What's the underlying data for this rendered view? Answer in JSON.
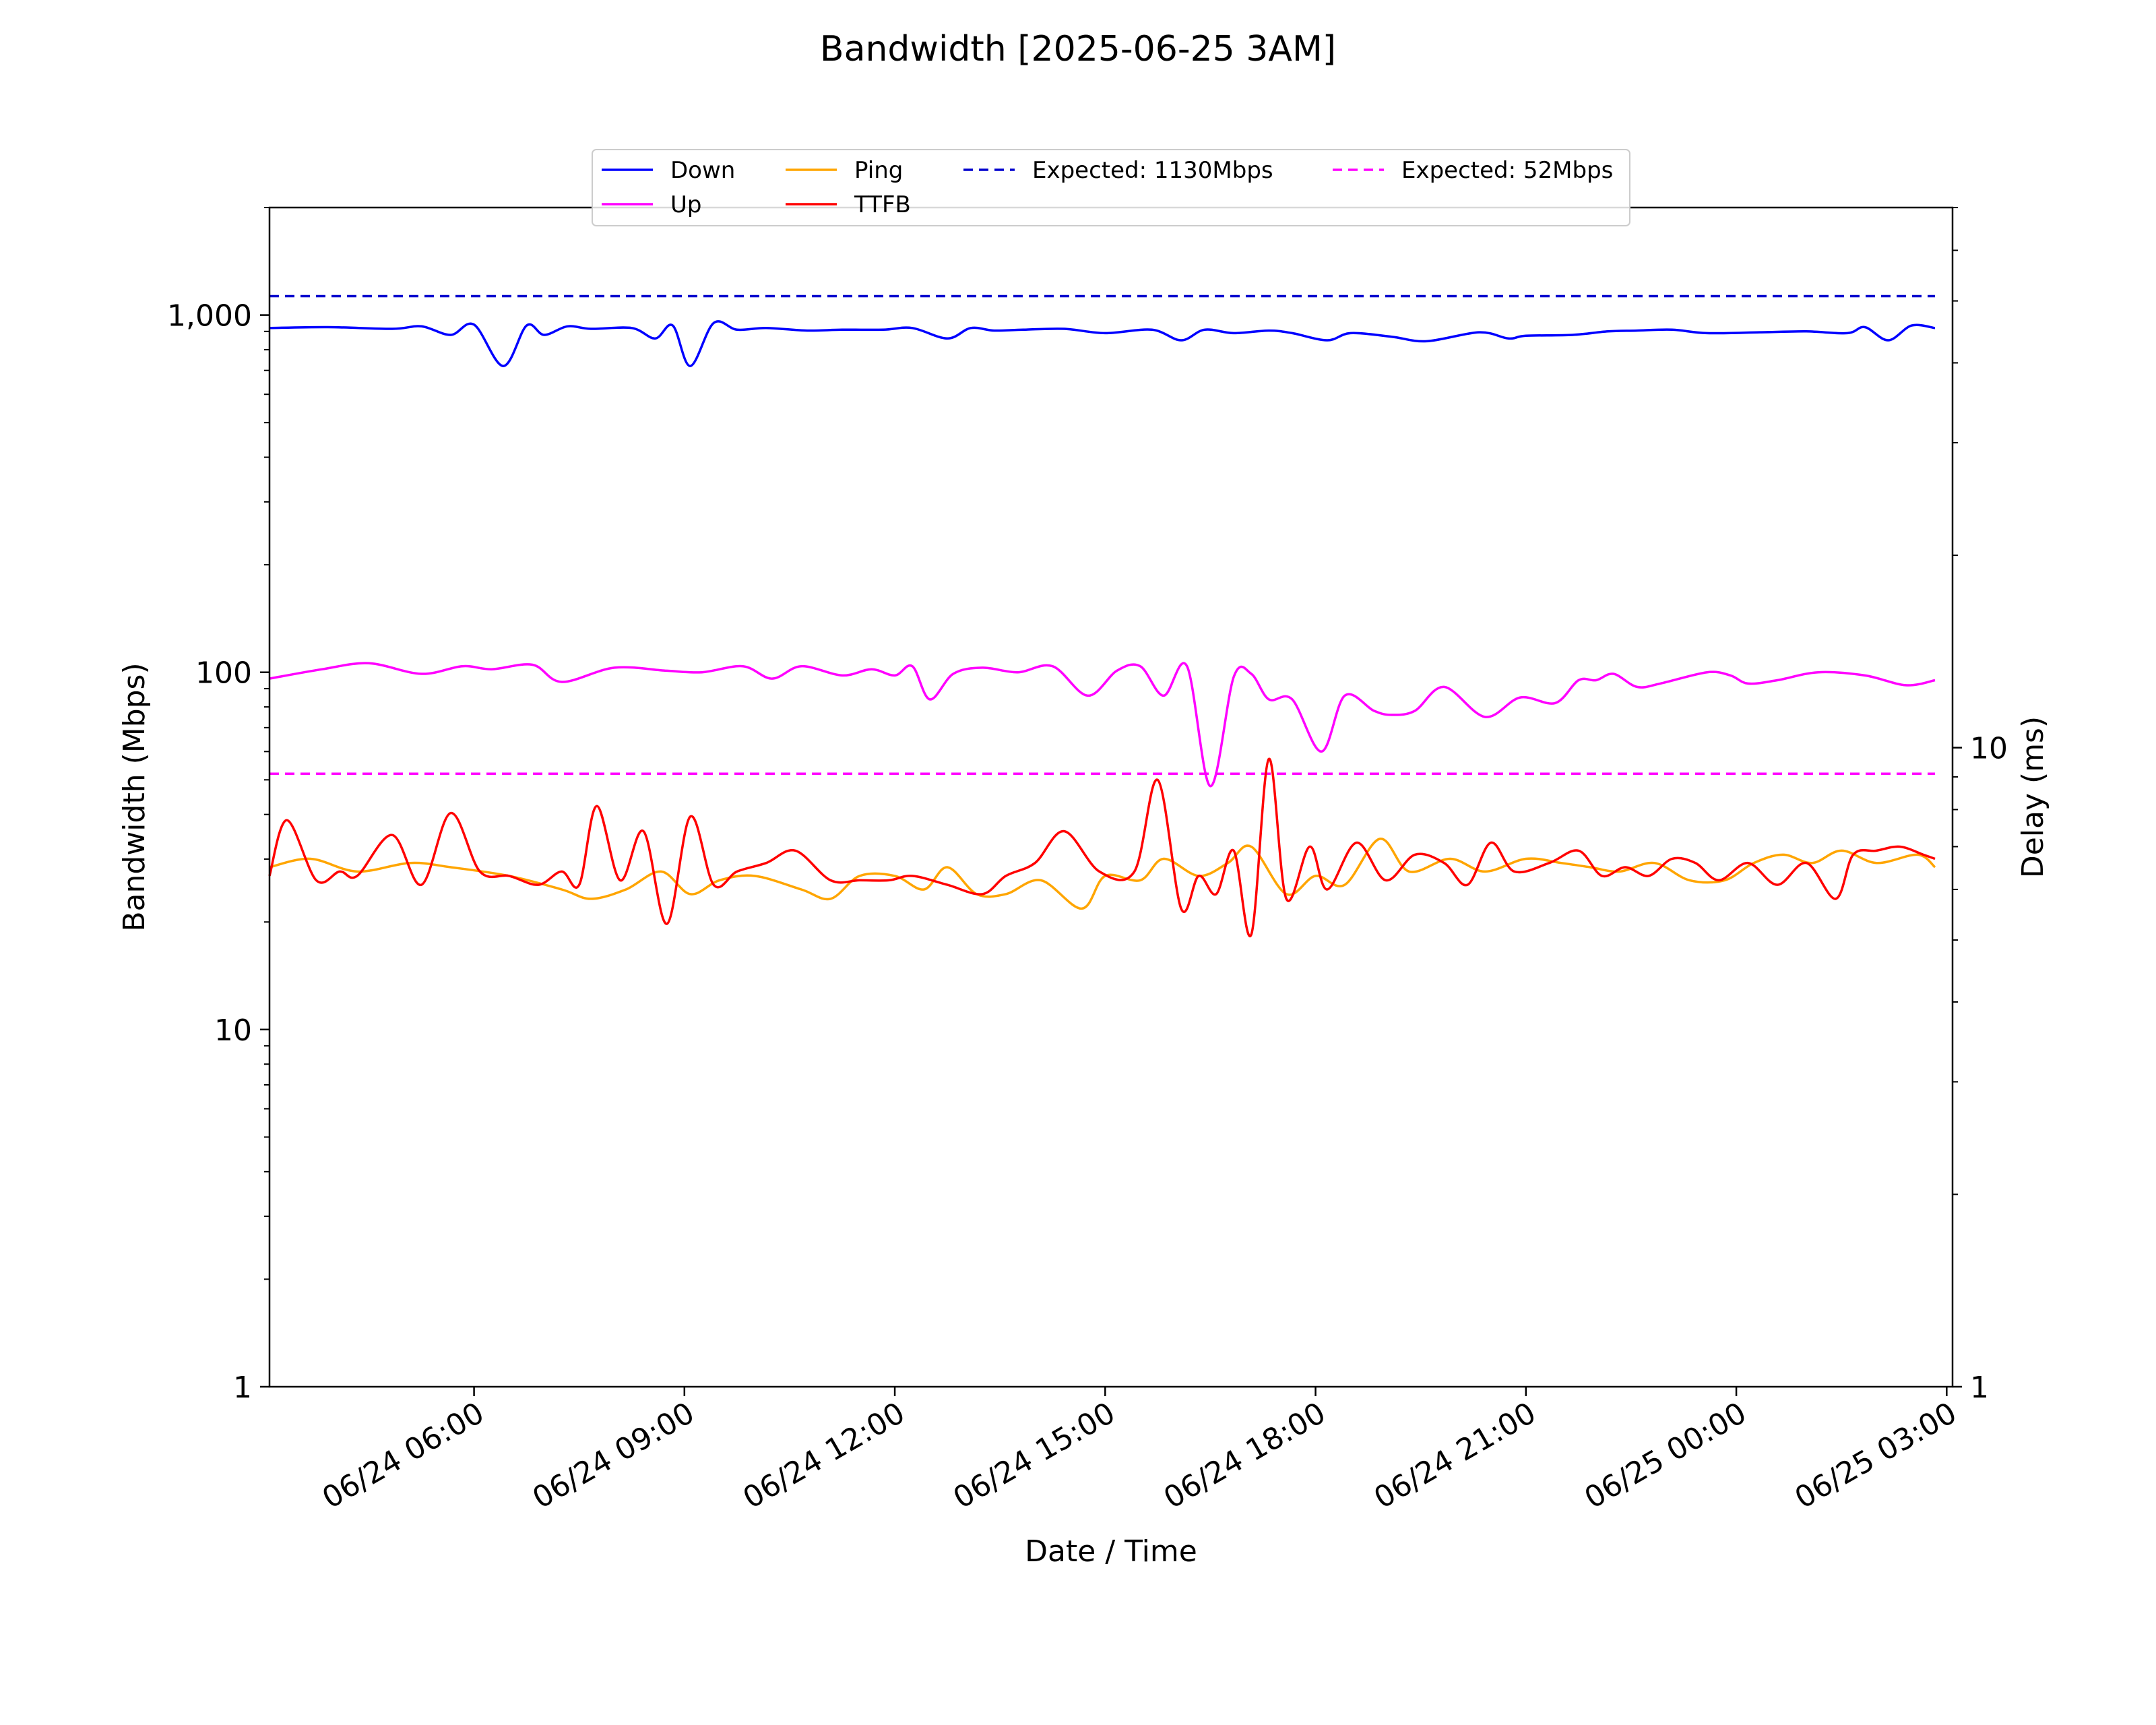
{
  "chart_data": {
    "type": "line",
    "title": "Bandwidth [2025-06-25 3AM]",
    "xlabel": "Date / Time",
    "ylabel": "Bandwidth (Mbps)",
    "y2label": "Delay (ms)",
    "yscale": "log",
    "y2scale": "log",
    "ylim": [
      1,
      2000
    ],
    "y2lim": [
      1,
      70
    ],
    "xlim": [
      "2025-06-24 03:05",
      "2025-06-25 03:05"
    ],
    "grid": false,
    "legend_position": "top-center",
    "yticks": [
      {
        "value": 1,
        "label": "1"
      },
      {
        "value": 10,
        "label": "10"
      },
      {
        "value": 100,
        "label": "100"
      },
      {
        "value": 1000,
        "label": "1,000"
      }
    ],
    "y2ticks": [
      {
        "value": 1,
        "label": "1"
      },
      {
        "value": 10,
        "label": "10"
      }
    ],
    "xticks": [
      {
        "value": "2025-06-24 06:00",
        "label": "06/24 06:00"
      },
      {
        "value": "2025-06-24 09:00",
        "label": "06/24 09:00"
      },
      {
        "value": "2025-06-24 12:00",
        "label": "06/24 12:00"
      },
      {
        "value": "2025-06-24 15:00",
        "label": "06/24 15:00"
      },
      {
        "value": "2025-06-24 18:00",
        "label": "06/24 18:00"
      },
      {
        "value": "2025-06-24 21:00",
        "label": "06/24 21:00"
      },
      {
        "value": "2025-06-25 00:00",
        "label": "06/25 00:00"
      },
      {
        "value": "2025-06-25 03:00",
        "label": "06/25 03:00"
      }
    ],
    "series": [
      {
        "name": "Down",
        "axis": "left",
        "color": "#0000ff",
        "style": "solid",
        "x": [
          "2025-06-24 03:05",
          "2025-06-24 03:55",
          "2025-06-24 04:50",
          "2025-06-24 05:15",
          "2025-06-24 05:40",
          "2025-06-24 06:00",
          "2025-06-24 06:25",
          "2025-06-24 06:45",
          "2025-06-24 07:00",
          "2025-06-24 07:20",
          "2025-06-24 07:40",
          "2025-06-24 08:15",
          "2025-06-24 08:35",
          "2025-06-24 08:50",
          "2025-06-24 09:05",
          "2025-06-24 09:25",
          "2025-06-24 09:45",
          "2025-06-24 10:10",
          "2025-06-24 10:45",
          "2025-06-24 11:15",
          "2025-06-24 11:50",
          "2025-06-24 12:15",
          "2025-06-24 12:45",
          "2025-06-24 13:05",
          "2025-06-24 13:25",
          "2025-06-24 13:50",
          "2025-06-24 14:25",
          "2025-06-24 15:00",
          "2025-06-24 15:40",
          "2025-06-24 16:05",
          "2025-06-24 16:25",
          "2025-06-24 16:50",
          "2025-06-24 17:20",
          "2025-06-24 17:40",
          "2025-06-24 18:10",
          "2025-06-24 18:30",
          "2025-06-24 19:05",
          "2025-06-24 19:35",
          "2025-06-24 20:20",
          "2025-06-24 20:45",
          "2025-06-24 21:00",
          "2025-06-24 21:40",
          "2025-06-24 22:10",
          "2025-06-24 22:35",
          "2025-06-24 23:05",
          "2025-06-24 23:35",
          "2025-06-25 00:20",
          "2025-06-25 01:00",
          "2025-06-25 01:35",
          "2025-06-25 01:50",
          "2025-06-25 02:10",
          "2025-06-25 02:30",
          "2025-06-25 02:50"
        ],
        "values": [
          920,
          925,
          915,
          930,
          880,
          940,
          720,
          935,
          880,
          930,
          915,
          920,
          860,
          935,
          720,
          950,
          910,
          920,
          905,
          910,
          910,
          920,
          860,
          920,
          905,
          910,
          915,
          890,
          910,
          850,
          910,
          890,
          905,
          890,
          850,
          890,
          870,
          845,
          895,
          860,
          875,
          880,
          900,
          905,
          910,
          890,
          895,
          900,
          890,
          925,
          850,
          935,
          920
        ]
      },
      {
        "name": "Up",
        "axis": "left",
        "color": "#ff00ff",
        "style": "solid",
        "x": [
          "2025-06-24 03:05",
          "2025-06-24 03:50",
          "2025-06-24 04:30",
          "2025-06-24 05:15",
          "2025-06-24 05:50",
          "2025-06-24 06:15",
          "2025-06-24 06:50",
          "2025-06-24 07:15",
          "2025-06-24 08:00",
          "2025-06-24 08:45",
          "2025-06-24 09:15",
          "2025-06-24 09:50",
          "2025-06-24 10:15",
          "2025-06-24 10:40",
          "2025-06-24 11:15",
          "2025-06-24 11:40",
          "2025-06-24 12:00",
          "2025-06-24 12:15",
          "2025-06-24 12:30",
          "2025-06-24 12:50",
          "2025-06-24 13:15",
          "2025-06-24 13:45",
          "2025-06-24 14:15",
          "2025-06-24 14:45",
          "2025-06-24 15:10",
          "2025-06-24 15:30",
          "2025-06-24 15:50",
          "2025-06-24 16:10",
          "2025-06-24 16:30",
          "2025-06-24 16:50",
          "2025-06-24 17:05",
          "2025-06-24 17:20",
          "2025-06-24 17:40",
          "2025-06-24 18:05",
          "2025-06-24 18:25",
          "2025-06-24 18:50",
          "2025-06-24 19:05",
          "2025-06-24 19:25",
          "2025-06-24 19:50",
          "2025-06-24 20:25",
          "2025-06-24 20:55",
          "2025-06-24 21:25",
          "2025-06-24 21:45",
          "2025-06-24 22:00",
          "2025-06-24 22:15",
          "2025-06-24 22:35",
          "2025-06-24 22:55",
          "2025-06-24 23:35",
          "2025-06-24 23:55",
          "2025-06-25 00:10",
          "2025-06-25 00:35",
          "2025-06-25 01:10",
          "2025-06-25 01:50",
          "2025-06-25 02:25",
          "2025-06-25 02:50"
        ],
        "values": [
          96,
          102,
          106,
          99,
          104,
          102,
          105,
          94,
          103,
          101,
          100,
          104,
          96,
          104,
          98,
          102,
          98,
          104,
          84,
          99,
          103,
          100,
          104,
          86,
          101,
          104,
          86,
          104,
          48,
          97,
          99,
          84,
          84,
          60,
          86,
          78,
          76,
          78,
          91,
          75,
          85,
          82,
          95,
          95,
          99,
          91,
          93,
          100,
          98,
          93,
          95,
          100,
          98,
          92,
          95
        ]
      },
      {
        "name": "Ping",
        "axis": "right",
        "color": "#ffa500",
        "style": "solid",
        "x": [
          "2025-06-24 03:05",
          "2025-06-24 03:40",
          "2025-06-24 04:20",
          "2025-06-24 05:05",
          "2025-06-24 05:40",
          "2025-06-24 06:30",
          "2025-06-24 07:15",
          "2025-06-24 07:40",
          "2025-06-24 08:10",
          "2025-06-24 08:40",
          "2025-06-24 09:05",
          "2025-06-24 09:30",
          "2025-06-24 10:00",
          "2025-06-24 10:40",
          "2025-06-24 11:05",
          "2025-06-24 11:30",
          "2025-06-24 12:00",
          "2025-06-24 12:25",
          "2025-06-24 12:45",
          "2025-06-24 13:10",
          "2025-06-24 13:35",
          "2025-06-24 14:05",
          "2025-06-24 14:40",
          "2025-06-24 15:00",
          "2025-06-24 15:30",
          "2025-06-24 15:50",
          "2025-06-24 16:20",
          "2025-06-24 16:45",
          "2025-06-24 17:05",
          "2025-06-24 17:35",
          "2025-06-24 18:00",
          "2025-06-24 18:25",
          "2025-06-24 18:55",
          "2025-06-24 19:20",
          "2025-06-24 19:55",
          "2025-06-24 20:25",
          "2025-06-24 21:00",
          "2025-06-24 21:30",
          "2025-06-24 21:55",
          "2025-06-24 22:20",
          "2025-06-24 22:50",
          "2025-06-24 23:20",
          "2025-06-24 23:50",
          "2025-06-25 00:15",
          "2025-06-25 00:40",
          "2025-06-25 01:05",
          "2025-06-25 01:30",
          "2025-06-25 02:00",
          "2025-06-25 02:35",
          "2025-06-25 02:50"
        ],
        "values": [
          6.5,
          6.7,
          6.4,
          6.6,
          6.5,
          6.3,
          6.0,
          5.8,
          6.0,
          6.4,
          5.9,
          6.2,
          6.3,
          6.0,
          5.8,
          6.3,
          6.3,
          6.0,
          6.5,
          5.9,
          5.9,
          6.2,
          5.6,
          6.3,
          6.2,
          6.7,
          6.3,
          6.6,
          7.0,
          5.9,
          6.3,
          6.1,
          7.2,
          6.4,
          6.7,
          6.4,
          6.7,
          6.6,
          6.5,
          6.4,
          6.6,
          6.2,
          6.2,
          6.6,
          6.8,
          6.6,
          6.9,
          6.6,
          6.8,
          6.5
        ]
      },
      {
        "name": "TTFB",
        "axis": "right",
        "color": "#ff0000",
        "style": "solid",
        "x": [
          "2025-06-24 03:05",
          "2025-06-24 03:20",
          "2025-06-24 03:45",
          "2025-06-24 04:05",
          "2025-06-24 04:20",
          "2025-06-24 04:50",
          "2025-06-24 05:15",
          "2025-06-24 05:40",
          "2025-06-24 06:05",
          "2025-06-24 06:30",
          "2025-06-24 06:55",
          "2025-06-24 07:15",
          "2025-06-24 07:30",
          "2025-06-24 07:45",
          "2025-06-24 08:05",
          "2025-06-24 08:25",
          "2025-06-24 08:45",
          "2025-06-24 09:05",
          "2025-06-24 09:25",
          "2025-06-24 09:45",
          "2025-06-24 10:10",
          "2025-06-24 10:35",
          "2025-06-24 11:05",
          "2025-06-24 11:30",
          "2025-06-24 11:55",
          "2025-06-24 12:15",
          "2025-06-24 12:45",
          "2025-06-24 13:15",
          "2025-06-24 13:35",
          "2025-06-24 14:00",
          "2025-06-24 14:25",
          "2025-06-24 14:55",
          "2025-06-24 15:25",
          "2025-06-24 15:45",
          "2025-06-24 16:05",
          "2025-06-24 16:20",
          "2025-06-24 16:35",
          "2025-06-24 16:50",
          "2025-06-24 17:05",
          "2025-06-24 17:20",
          "2025-06-24 17:35",
          "2025-06-24 17:55",
          "2025-06-24 18:10",
          "2025-06-24 18:35",
          "2025-06-24 19:00",
          "2025-06-24 19:25",
          "2025-06-24 19:50",
          "2025-06-24 20:10",
          "2025-06-24 20:30",
          "2025-06-24 20:50",
          "2025-06-24 21:20",
          "2025-06-24 21:45",
          "2025-06-24 22:05",
          "2025-06-24 22:25",
          "2025-06-24 22:45",
          "2025-06-24 23:05",
          "2025-06-24 23:25",
          "2025-06-24 23:45",
          "2025-06-25 00:10",
          "2025-06-25 00:35",
          "2025-06-25 01:00",
          "2025-06-25 01:25",
          "2025-06-25 01:40",
          "2025-06-25 02:00",
          "2025-06-25 02:20",
          "2025-06-25 02:40",
          "2025-06-25 02:50"
        ],
        "values": [
          6.3,
          7.7,
          6.2,
          6.4,
          6.3,
          7.3,
          6.1,
          7.9,
          6.4,
          6.3,
          6.1,
          6.4,
          6.1,
          8.1,
          6.2,
          7.4,
          5.3,
          7.8,
          6.1,
          6.4,
          6.6,
          6.9,
          6.2,
          6.2,
          6.2,
          6.3,
          6.1,
          5.9,
          6.3,
          6.6,
          7.4,
          6.4,
          6.4,
          8.9,
          5.6,
          6.3,
          5.9,
          6.9,
          5.1,
          9.6,
          5.8,
          7.0,
          6.0,
          7.1,
          6.2,
          6.8,
          6.6,
          6.1,
          7.1,
          6.4,
          6.6,
          6.9,
          6.3,
          6.5,
          6.3,
          6.7,
          6.6,
          6.2,
          6.6,
          6.1,
          6.6,
          5.8,
          6.8,
          6.9,
          7.0,
          6.8,
          6.7
        ]
      },
      {
        "name": "Expected: 1130Mbps",
        "axis": "left",
        "color": "#0000cd",
        "style": "dashed",
        "x": [
          "2025-06-24 03:05",
          "2025-06-25 02:50"
        ],
        "values": [
          1130,
          1130
        ]
      },
      {
        "name": "Expected: 52Mbps",
        "axis": "left",
        "color": "#ff00ff",
        "style": "dashed",
        "x": [
          "2025-06-24 03:05",
          "2025-06-25 02:50"
        ],
        "values": [
          52,
          52
        ]
      }
    ]
  }
}
